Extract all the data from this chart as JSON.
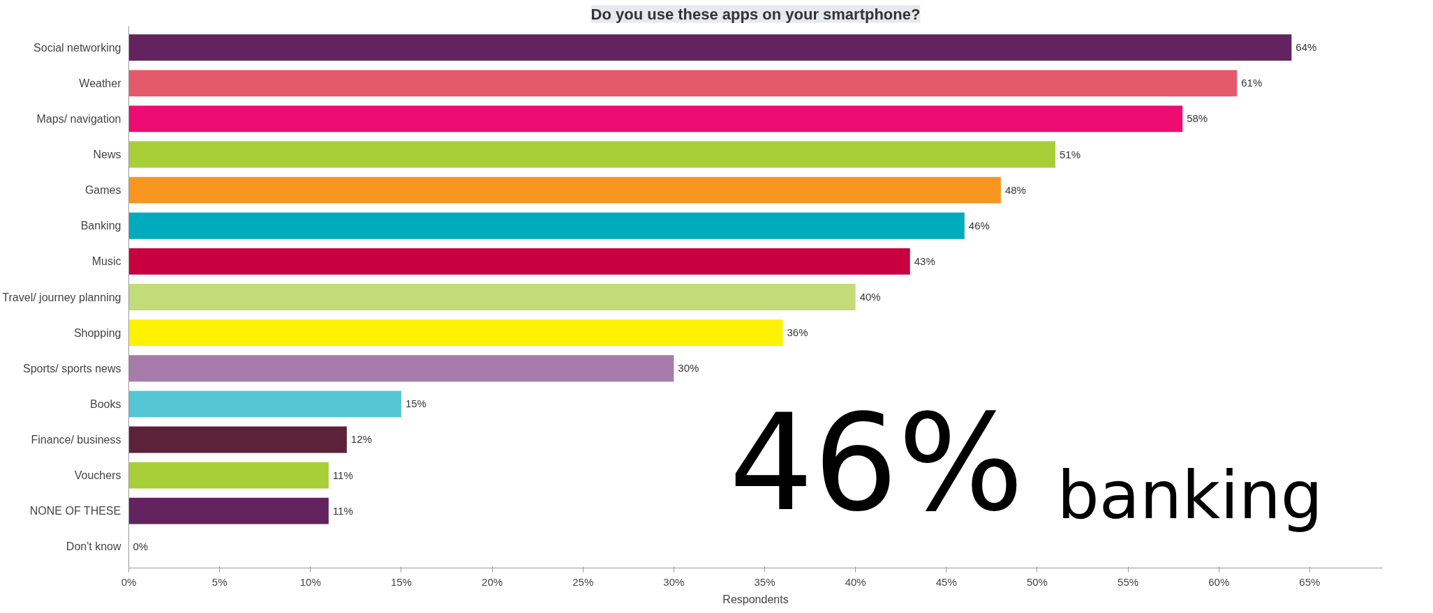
{
  "chart_data": {
    "type": "bar",
    "orientation": "horizontal",
    "title": "Do you use these apps on your smartphone?",
    "xlabel": "Respondents",
    "categories": [
      "Social networking",
      "Weather",
      "Maps/ navigation",
      "News",
      "Games",
      "Banking",
      "Music",
      "Travel/ journey planning",
      "Shopping",
      "Sports/ sports news",
      "Books",
      "Finance/ business",
      "Vouchers",
      "NONE OF THESE",
      "Don't know"
    ],
    "values": [
      64,
      61,
      58,
      51,
      48,
      46,
      43,
      40,
      36,
      30,
      15,
      12,
      11,
      11,
      0
    ],
    "colors": [
      "#62235f",
      "#e55a6b",
      "#ec0c72",
      "#a8cf38",
      "#f6961e",
      "#00abbd",
      "#c8003f",
      "#c2dc7a",
      "#fff200",
      "#a67ba9",
      "#55c5d4",
      "#5c2239",
      "#a8cf38",
      "#62235f",
      "#f6961e"
    ],
    "xlim": [
      0,
      69
    ],
    "xticks": [
      {
        "value": 0,
        "label": "0%"
      },
      {
        "value": 5,
        "label": "5%"
      },
      {
        "value": 10,
        "label": "10%"
      },
      {
        "value": 15,
        "label": "15%"
      },
      {
        "value": 20,
        "label": "20%"
      },
      {
        "value": 25,
        "label": "25%"
      },
      {
        "value": 30,
        "label": "30%"
      },
      {
        "value": 35,
        "label": "35%"
      },
      {
        "value": 40,
        "label": "40%"
      },
      {
        "value": 45,
        "label": "45%"
      },
      {
        "value": 50,
        "label": "50%"
      },
      {
        "value": 55,
        "label": "55%"
      },
      {
        "value": 60,
        "label": "60%"
      },
      {
        "value": 65,
        "label": "65%"
      }
    ],
    "value_labels": [
      "64%",
      "61%",
      "58%",
      "51%",
      "48%",
      "46%",
      "43%",
      "40%",
      "36%",
      "30%",
      "15%",
      "12%",
      "11%",
      "11%",
      "0%"
    ],
    "grid": false,
    "annotations": [
      "46%",
      "banking"
    ]
  }
}
